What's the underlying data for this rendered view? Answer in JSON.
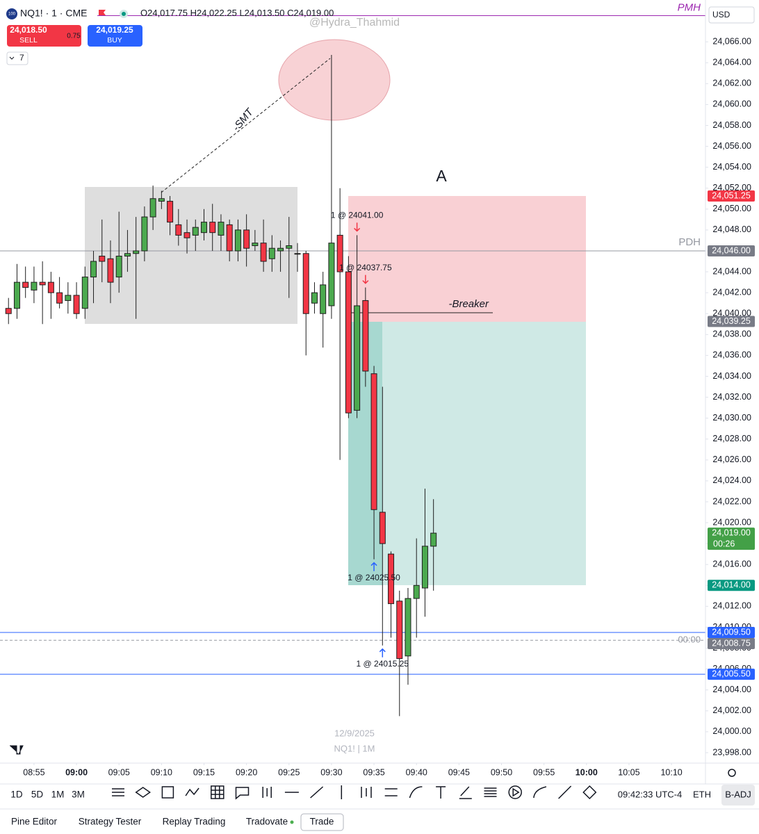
{
  "header": {
    "icon_text": "100",
    "symbol": "NQ1! · 1 · CME",
    "ohlc": [
      "O24,017.75",
      "H24,022.25",
      "L24,013.50",
      "C24,019.00"
    ],
    "sell_price": "24,018.50",
    "sell_label": "SELL",
    "spread": "0.75",
    "buy_price": "24,019.25",
    "buy_label": "BUY",
    "dropdown": "7",
    "currency": "USD",
    "watermark": "@Hydra_Thahmid"
  },
  "chart_data": {
    "type": "candlestick",
    "ylim": [
      23997,
      24070
    ],
    "yticks": [
      {
        "value": 23998,
        "label": "23,998.00"
      },
      {
        "value": 24000,
        "label": "24,000.00"
      },
      {
        "value": 24002,
        "label": "24,002.00"
      },
      {
        "value": 24004,
        "label": "24,004.00"
      },
      {
        "value": 24006,
        "label": "24,006.00"
      },
      {
        "value": 24008,
        "label": "24,008.00"
      },
      {
        "value": 24010,
        "label": "24,010.00"
      },
      {
        "value": 24012,
        "label": "24,012.00"
      },
      {
        "value": 24014,
        "label": "24,014.00"
      },
      {
        "value": 24016,
        "label": "24,016.00"
      },
      {
        "value": 24018,
        "label": "24,018.00"
      },
      {
        "value": 24020,
        "label": "24,020.00"
      },
      {
        "value": 24022,
        "label": "24,022.00"
      },
      {
        "value": 24024,
        "label": "24,024.00"
      },
      {
        "value": 24026,
        "label": "24,026.00"
      },
      {
        "value": 24028,
        "label": "24,028.00"
      },
      {
        "value": 24030,
        "label": "24,030.00"
      },
      {
        "value": 24032,
        "label": "24,032.00"
      },
      {
        "value": 24034,
        "label": "24,034.00"
      },
      {
        "value": 24036,
        "label": "24,036.00"
      },
      {
        "value": 24038,
        "label": "24,038.00"
      },
      {
        "value": 24040,
        "label": "24,040.00"
      },
      {
        "value": 24042,
        "label": "24,042.00"
      },
      {
        "value": 24044,
        "label": "24,044.00"
      },
      {
        "value": 24046,
        "label": "24,046.00"
      },
      {
        "value": 24048,
        "label": "24,048.00"
      },
      {
        "value": 24050,
        "label": "24,050.00"
      },
      {
        "value": 24052,
        "label": "24,052.00"
      },
      {
        "value": 24054,
        "label": "24,054.00"
      },
      {
        "value": 24056,
        "label": "24,056.00"
      },
      {
        "value": 24058,
        "label": "24,058.00"
      },
      {
        "value": 24060,
        "label": "24,060.00"
      },
      {
        "value": 24062,
        "label": "24,062.00"
      },
      {
        "value": 24064,
        "label": "24,064.00"
      },
      {
        "value": 24066,
        "label": "24,066.00"
      }
    ],
    "xlim": [
      "08:51",
      "10:14"
    ],
    "xticks": [
      "08:55",
      "09:00",
      "09:05",
      "09:10",
      "09:15",
      "09:20",
      "09:25",
      "09:30",
      "09:35",
      "09:40",
      "09:45",
      "09:50",
      "09:55",
      "10:00",
      "10:05",
      "10:10"
    ],
    "up_color": "#4caa4f",
    "down_color": "#f23645",
    "outline_color": "#1e1e1e",
    "candles": {
      "t": [
        "08:52",
        "08:53",
        "08:54",
        "08:55",
        "08:56",
        "08:57",
        "08:58",
        "08:59",
        "09:00",
        "09:01",
        "09:02",
        "09:03",
        "09:04",
        "09:05",
        "09:06",
        "09:07",
        "09:08",
        "09:09",
        "09:10",
        "09:11",
        "09:12",
        "09:13",
        "09:14",
        "09:15",
        "09:16",
        "09:17",
        "09:18",
        "09:19",
        "09:20",
        "09:21",
        "09:22",
        "09:23",
        "09:24",
        "09:25",
        "09:26",
        "09:27",
        "09:28",
        "09:29",
        "09:30",
        "09:31",
        "09:32",
        "09:33",
        "09:34",
        "09:35",
        "09:36",
        "09:37",
        "09:38",
        "09:39",
        "09:40",
        "09:41",
        "09:42"
      ],
      "open": [
        24040.5,
        24040.5,
        24043.0,
        24042.25,
        24043.0,
        24043.0,
        24042.0,
        24041.25,
        24041.75,
        24040.5,
        24043.5,
        24045.5,
        24045.25,
        24043.5,
        24045.5,
        24045.75,
        24046.0,
        24049.25,
        24050.75,
        24050.75,
        24048.5,
        24047.75,
        24047.5,
        24047.75,
        24048.75,
        24047.5,
        24048.5,
        24046.0,
        24048.0,
        24046.5,
        24046.75,
        24045.25,
        24046.0,
        24046.25,
        24045.75,
        24045.75,
        24041.0,
        24040.0,
        24040.75,
        24047.5,
        24044.0,
        24030.75,
        24041.25,
        24034.25,
        24021.0,
        24017.0,
        24012.5,
        24007.25,
        24012.75,
        24013.75,
        24017.75
      ],
      "high": [
        24041.5,
        24044.75,
        24044.5,
        24044.5,
        24045.0,
        24044.0,
        24043.5,
        24043.0,
        24043.0,
        24044.5,
        24046.0,
        24049.0,
        24047.0,
        24049.75,
        24048.0,
        24049.25,
        24050.25,
        24052.25,
        24051.75,
        24051.25,
        24050.0,
        24049.0,
        24049.0,
        24050.0,
        24050.5,
        24049.5,
        24049.0,
        24049.0,
        24049.5,
        24048.0,
        24049.0,
        24047.5,
        24047.0,
        24049.25,
        24046.75,
        24046.0,
        24043.0,
        24044.0,
        24064.75,
        24052.0,
        24045.5,
        24047.5,
        24042.5,
        24035.0,
        24033.0,
        24017.25,
        24013.5,
        24013.75,
        24018.5,
        24023.25,
        24022.25
      ],
      "low": [
        24039.0,
        24039.5,
        24041.5,
        24041.0,
        24039.0,
        24039.5,
        24040.5,
        24040.0,
        24039.5,
        24039.5,
        24041.0,
        24043.0,
        24041.0,
        24042.0,
        24044.0,
        24039.5,
        24045.0,
        24048.0,
        24050.0,
        24047.5,
        24046.5,
        24045.75,
        24046.0,
        24047.0,
        24046.0,
        24046.0,
        24045.0,
        24045.0,
        24044.5,
        24046.0,
        24044.0,
        24044.0,
        24044.0,
        24041.5,
        24044.0,
        24036.0,
        24040.0,
        24036.75,
        24039.5,
        24026.0,
        24030.0,
        24030.0,
        24033.0,
        24016.5,
        24008.25,
        24009.0,
        24001.5,
        24004.5,
        24009.0,
        24011.0,
        24013.5
      ],
      "close": [
        24040.0,
        24043.0,
        24042.5,
        24043.0,
        24042.75,
        24042.0,
        24041.0,
        24041.75,
        24040.0,
        24043.5,
        24045.0,
        24045.0,
        24043.0,
        24045.5,
        24045.75,
        24046.0,
        24049.25,
        24051.0,
        24051.0,
        24048.75,
        24047.5,
        24047.25,
        24048.25,
        24048.75,
        24047.75,
        24048.75,
        24046.0,
        24048.0,
        24046.25,
        24046.75,
        24045.0,
        24046.25,
        24046.25,
        24046.5,
        24045.75,
        24040.0,
        24042.0,
        24042.75,
        24046.75,
        24044.0,
        24030.5,
        24040.75,
        24034.5,
        24021.25,
        24018.0,
        24012.25,
        24007.0,
        24012.75,
        24014.0,
        24017.75,
        24019.0
      ]
    },
    "levels": [
      {
        "name": "PMH",
        "value": 24068.5,
        "color": "#9c27b0",
        "italic": true
      }
    ],
    "price_labels": [
      {
        "value": 24051.25,
        "label": "24,051.25",
        "color": "#f23645"
      },
      {
        "value": 24046,
        "label": "24,046.00",
        "color": "#787b86",
        "line": "solid",
        "name": "PDH"
      },
      {
        "value": 24039.25,
        "label": "24,039.25",
        "color": "#787b86"
      },
      {
        "value": 24019,
        "label": "24,019.00",
        "sub": "00:26",
        "color": "#43a047"
      },
      {
        "value": 24014,
        "label": "24,014.00",
        "color": "#089981"
      },
      {
        "value": 24009.5,
        "label": "24,009.50",
        "color": "#2962ff",
        "line": "solid"
      },
      {
        "value": 24008.75,
        "label": "24,008.75",
        "color": "#787b86",
        "line": "dashed",
        "name": "00:00"
      },
      {
        "value": 24005.5,
        "label": "24,005.50",
        "color": "#2962ff",
        "line": "solid"
      }
    ],
    "trades": [
      {
        "label": "1 @ 24041.00",
        "side": "sell",
        "t": "09:33"
      },
      {
        "label": "1 @ 24037.75",
        "side": "sell",
        "t": "09:34"
      },
      {
        "label": "1 @ 24025.50",
        "side": "buy",
        "t": "09:35"
      },
      {
        "label": "1 @ 24015.25",
        "side": "buy",
        "t": "09:36"
      }
    ],
    "annotations": {
      "a": "A",
      "smt": "-SMT",
      "breaker": "-Breaker"
    },
    "date": "12/9/2025",
    "symbol_interval": "NQ1! | 1M"
  },
  "toolbar": {
    "timeframes": [
      "1D",
      "5D",
      "1M",
      "3M"
    ],
    "clock": "09:42:33 UTC-4",
    "session": "ETH",
    "adjust": "B-ADJ"
  },
  "tabs": [
    "Pine Editor",
    "Strategy Tester",
    "Replay Trading",
    "Tradovate",
    "Trade"
  ]
}
